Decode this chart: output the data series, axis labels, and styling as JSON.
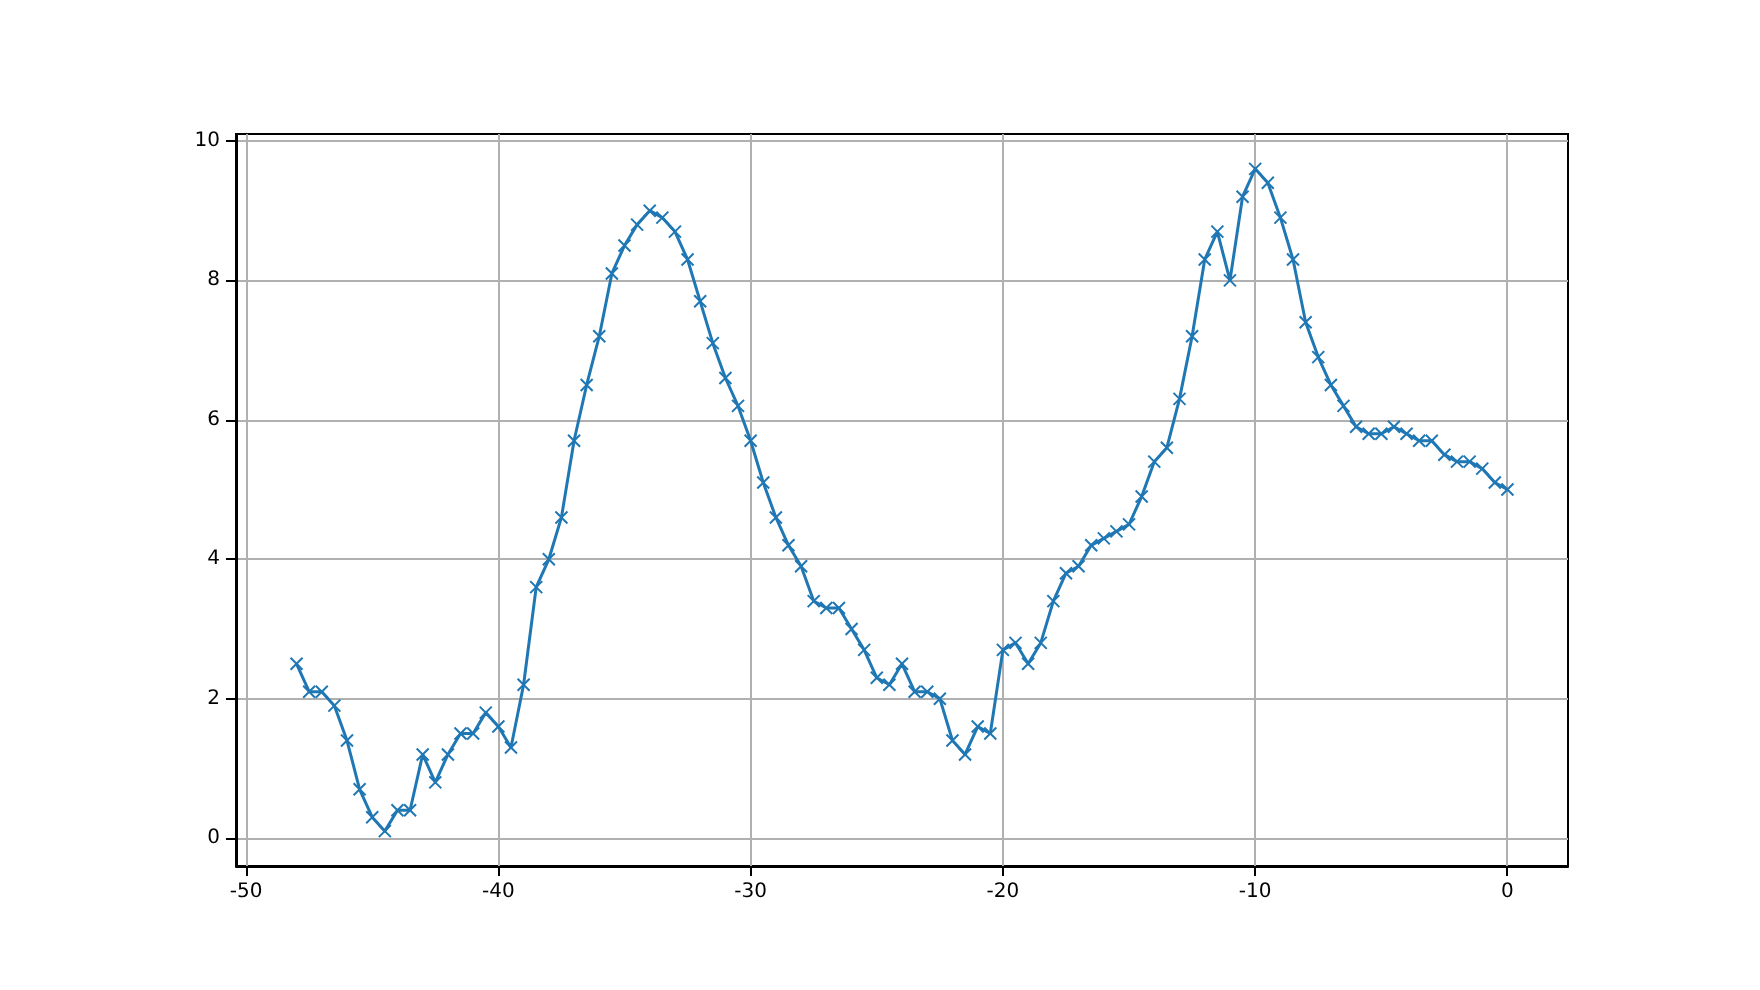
{
  "chart_data": {
    "type": "line",
    "x": [
      -48,
      -47.5,
      -47,
      -46.5,
      -46,
      -45.5,
      -45,
      -44.5,
      -44,
      -43.5,
      -43,
      -42.5,
      -42,
      -41.5,
      -41,
      -40.5,
      -40,
      -39.5,
      -39,
      -38.5,
      -38,
      -37.5,
      -37,
      -36.5,
      -36,
      -35.5,
      -35,
      -34.5,
      -34,
      -33.5,
      -33,
      -32.5,
      -32,
      -31.5,
      -31,
      -30.5,
      -30,
      -29.5,
      -29,
      -28.5,
      -28,
      -27.5,
      -27,
      -26.5,
      -26,
      -25.5,
      -25,
      -24.5,
      -24,
      -23.5,
      -23,
      -22.5,
      -22,
      -21.5,
      -21,
      -20.5,
      -20,
      -19.5,
      -19,
      -18.5,
      -18,
      -17.5,
      -17,
      -16.5,
      -16,
      -15.5,
      -15,
      -14.5,
      -14,
      -13.5,
      -13,
      -12.5,
      -12,
      -11.5,
      -11,
      -10.5,
      -10,
      -9.5,
      -9,
      -8.5,
      -8,
      -7.5,
      -7,
      -6.5,
      -6,
      -5.5,
      -5,
      -4.5,
      -4,
      -3.5,
      -3,
      -2.5,
      -2,
      -1.5,
      -1,
      -0.5,
      0
    ],
    "series": [
      {
        "color": "#1f77b4",
        "values": [
          2.5,
          2.1,
          2.1,
          1.9,
          1.4,
          0.7,
          0.3,
          0.1,
          0.4,
          0.4,
          1.2,
          0.8,
          1.2,
          1.5,
          1.5,
          1.8,
          1.6,
          1.3,
          2.2,
          3.6,
          4.0,
          4.6,
          5.7,
          6.5,
          7.2,
          8.1,
          8.5,
          8.8,
          9.0,
          8.9,
          8.7,
          8.3,
          7.7,
          7.1,
          6.6,
          6.2,
          5.7,
          5.1,
          4.6,
          4.2,
          3.9,
          3.4,
          3.3,
          3.3,
          3.0,
          2.7,
          2.3,
          2.2,
          2.5,
          2.1,
          2.1,
          2.0,
          1.4,
          1.2,
          1.6,
          1.5,
          2.7,
          2.8,
          2.5,
          2.8,
          3.4,
          3.8,
          3.9,
          4.2,
          4.3,
          4.4,
          4.5,
          4.9,
          5.4,
          5.6,
          6.3,
          7.2,
          8.3,
          8.7,
          8.0,
          9.2,
          9.6,
          9.4,
          8.9,
          8.3,
          7.4,
          6.9,
          6.5,
          6.2,
          5.9,
          5.8,
          5.8,
          5.9,
          5.8,
          5.7,
          5.7,
          5.5,
          5.4,
          5.4,
          5.3,
          5.1,
          5.0
        ]
      }
    ],
    "xlim": [
      -50.4,
      2.4
    ],
    "ylim": [
      -0.4,
      10.1
    ],
    "xticks": [
      -50,
      -40,
      -30,
      -20,
      -10,
      0
    ],
    "yticks": [
      0,
      2,
      4,
      6,
      8,
      10
    ],
    "grid": true,
    "marker": "cross",
    "line_style": "solid"
  }
}
